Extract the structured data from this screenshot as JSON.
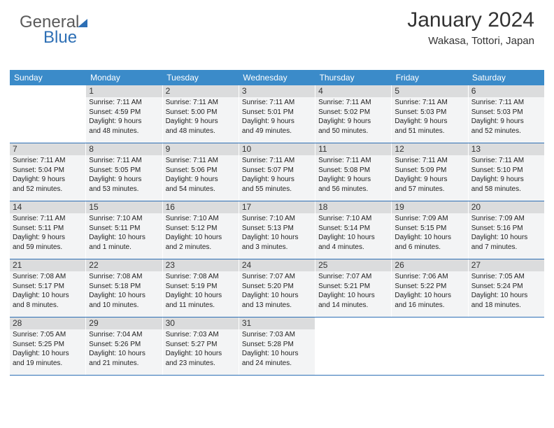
{
  "logo": {
    "part1": "General",
    "part2": "Blue"
  },
  "title": "January 2024",
  "location": "Wakasa, Tottori, Japan",
  "day_headers": [
    "Sunday",
    "Monday",
    "Tuesday",
    "Wednesday",
    "Thursday",
    "Friday",
    "Saturday"
  ],
  "colors": {
    "header_bg": "#3b8bc9",
    "header_text": "#ffffff",
    "row_border": "#2d6fb5",
    "cell_bg": "#f3f4f5",
    "daynum_bg": "#dbdcdd"
  },
  "weeks": [
    [
      null,
      {
        "n": "1",
        "sr": "Sunrise: 7:11 AM",
        "ss": "Sunset: 4:59 PM",
        "d1": "Daylight: 9 hours",
        "d2": "and 48 minutes."
      },
      {
        "n": "2",
        "sr": "Sunrise: 7:11 AM",
        "ss": "Sunset: 5:00 PM",
        "d1": "Daylight: 9 hours",
        "d2": "and 48 minutes."
      },
      {
        "n": "3",
        "sr": "Sunrise: 7:11 AM",
        "ss": "Sunset: 5:01 PM",
        "d1": "Daylight: 9 hours",
        "d2": "and 49 minutes."
      },
      {
        "n": "4",
        "sr": "Sunrise: 7:11 AM",
        "ss": "Sunset: 5:02 PM",
        "d1": "Daylight: 9 hours",
        "d2": "and 50 minutes."
      },
      {
        "n": "5",
        "sr": "Sunrise: 7:11 AM",
        "ss": "Sunset: 5:03 PM",
        "d1": "Daylight: 9 hours",
        "d2": "and 51 minutes."
      },
      {
        "n": "6",
        "sr": "Sunrise: 7:11 AM",
        "ss": "Sunset: 5:03 PM",
        "d1": "Daylight: 9 hours",
        "d2": "and 52 minutes."
      }
    ],
    [
      {
        "n": "7",
        "sr": "Sunrise: 7:11 AM",
        "ss": "Sunset: 5:04 PM",
        "d1": "Daylight: 9 hours",
        "d2": "and 52 minutes."
      },
      {
        "n": "8",
        "sr": "Sunrise: 7:11 AM",
        "ss": "Sunset: 5:05 PM",
        "d1": "Daylight: 9 hours",
        "d2": "and 53 minutes."
      },
      {
        "n": "9",
        "sr": "Sunrise: 7:11 AM",
        "ss": "Sunset: 5:06 PM",
        "d1": "Daylight: 9 hours",
        "d2": "and 54 minutes."
      },
      {
        "n": "10",
        "sr": "Sunrise: 7:11 AM",
        "ss": "Sunset: 5:07 PM",
        "d1": "Daylight: 9 hours",
        "d2": "and 55 minutes."
      },
      {
        "n": "11",
        "sr": "Sunrise: 7:11 AM",
        "ss": "Sunset: 5:08 PM",
        "d1": "Daylight: 9 hours",
        "d2": "and 56 minutes."
      },
      {
        "n": "12",
        "sr": "Sunrise: 7:11 AM",
        "ss": "Sunset: 5:09 PM",
        "d1": "Daylight: 9 hours",
        "d2": "and 57 minutes."
      },
      {
        "n": "13",
        "sr": "Sunrise: 7:11 AM",
        "ss": "Sunset: 5:10 PM",
        "d1": "Daylight: 9 hours",
        "d2": "and 58 minutes."
      }
    ],
    [
      {
        "n": "14",
        "sr": "Sunrise: 7:11 AM",
        "ss": "Sunset: 5:11 PM",
        "d1": "Daylight: 9 hours",
        "d2": "and 59 minutes."
      },
      {
        "n": "15",
        "sr": "Sunrise: 7:10 AM",
        "ss": "Sunset: 5:11 PM",
        "d1": "Daylight: 10 hours",
        "d2": "and 1 minute."
      },
      {
        "n": "16",
        "sr": "Sunrise: 7:10 AM",
        "ss": "Sunset: 5:12 PM",
        "d1": "Daylight: 10 hours",
        "d2": "and 2 minutes."
      },
      {
        "n": "17",
        "sr": "Sunrise: 7:10 AM",
        "ss": "Sunset: 5:13 PM",
        "d1": "Daylight: 10 hours",
        "d2": "and 3 minutes."
      },
      {
        "n": "18",
        "sr": "Sunrise: 7:10 AM",
        "ss": "Sunset: 5:14 PM",
        "d1": "Daylight: 10 hours",
        "d2": "and 4 minutes."
      },
      {
        "n": "19",
        "sr": "Sunrise: 7:09 AM",
        "ss": "Sunset: 5:15 PM",
        "d1": "Daylight: 10 hours",
        "d2": "and 6 minutes."
      },
      {
        "n": "20",
        "sr": "Sunrise: 7:09 AM",
        "ss": "Sunset: 5:16 PM",
        "d1": "Daylight: 10 hours",
        "d2": "and 7 minutes."
      }
    ],
    [
      {
        "n": "21",
        "sr": "Sunrise: 7:08 AM",
        "ss": "Sunset: 5:17 PM",
        "d1": "Daylight: 10 hours",
        "d2": "and 8 minutes."
      },
      {
        "n": "22",
        "sr": "Sunrise: 7:08 AM",
        "ss": "Sunset: 5:18 PM",
        "d1": "Daylight: 10 hours",
        "d2": "and 10 minutes."
      },
      {
        "n": "23",
        "sr": "Sunrise: 7:08 AM",
        "ss": "Sunset: 5:19 PM",
        "d1": "Daylight: 10 hours",
        "d2": "and 11 minutes."
      },
      {
        "n": "24",
        "sr": "Sunrise: 7:07 AM",
        "ss": "Sunset: 5:20 PM",
        "d1": "Daylight: 10 hours",
        "d2": "and 13 minutes."
      },
      {
        "n": "25",
        "sr": "Sunrise: 7:07 AM",
        "ss": "Sunset: 5:21 PM",
        "d1": "Daylight: 10 hours",
        "d2": "and 14 minutes."
      },
      {
        "n": "26",
        "sr": "Sunrise: 7:06 AM",
        "ss": "Sunset: 5:22 PM",
        "d1": "Daylight: 10 hours",
        "d2": "and 16 minutes."
      },
      {
        "n": "27",
        "sr": "Sunrise: 7:05 AM",
        "ss": "Sunset: 5:24 PM",
        "d1": "Daylight: 10 hours",
        "d2": "and 18 minutes."
      }
    ],
    [
      {
        "n": "28",
        "sr": "Sunrise: 7:05 AM",
        "ss": "Sunset: 5:25 PM",
        "d1": "Daylight: 10 hours",
        "d2": "and 19 minutes."
      },
      {
        "n": "29",
        "sr": "Sunrise: 7:04 AM",
        "ss": "Sunset: 5:26 PM",
        "d1": "Daylight: 10 hours",
        "d2": "and 21 minutes."
      },
      {
        "n": "30",
        "sr": "Sunrise: 7:03 AM",
        "ss": "Sunset: 5:27 PM",
        "d1": "Daylight: 10 hours",
        "d2": "and 23 minutes."
      },
      {
        "n": "31",
        "sr": "Sunrise: 7:03 AM",
        "ss": "Sunset: 5:28 PM",
        "d1": "Daylight: 10 hours",
        "d2": "and 24 minutes."
      },
      null,
      null,
      null
    ]
  ]
}
